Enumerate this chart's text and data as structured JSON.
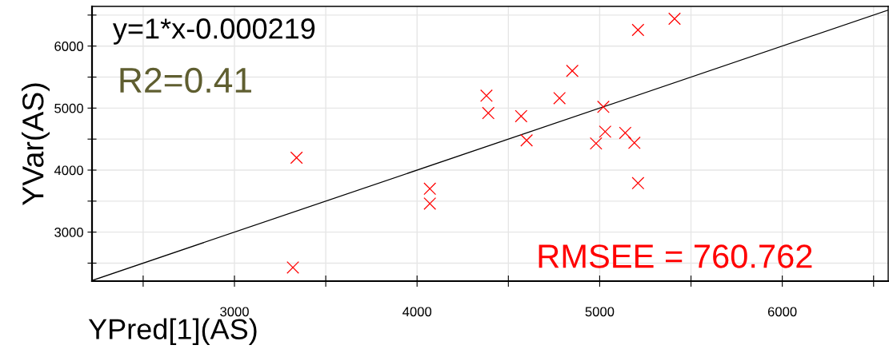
{
  "chart_data": {
    "type": "scatter",
    "xlabel": "YPred[1](AS)",
    "ylabel": "YVar(AS)",
    "annotations": [
      "y=1*x-0.000219",
      "R2=0.41",
      "RMSEE = 760.762"
    ],
    "series": [
      {
        "color": "#ff0000",
        "marker": "cross",
        "x": [
          3320,
          3340,
          4070,
          4070,
          4380,
          4390,
          4570,
          4600,
          4780,
          4850,
          4980,
          5020,
          5030,
          5140,
          5190,
          5210,
          5210,
          5410
        ],
        "values": [
          2430,
          4200,
          3700,
          3460,
          5200,
          4920,
          4870,
          4480,
          5160,
          5600,
          4430,
          5020,
          4620,
          4600,
          4440,
          3790,
          6260,
          6440
        ]
      },
      {
        "type": "line",
        "color": "#000000",
        "marker": "none",
        "x": [
          2220,
          6580
        ],
        "values": [
          2220,
          6580
        ]
      }
    ],
    "xlim": [
      2220,
      6580
    ],
    "ylim": [
      2210,
      6640
    ],
    "xticks": [
      {
        "value": 2500,
        "label": null
      },
      3000,
      {
        "value": 3500,
        "label": null
      },
      4000,
      {
        "value": 4500,
        "label": null
      },
      5000,
      {
        "value": 5500,
        "label": null
      },
      6000,
      {
        "value": 6500,
        "label": null
      }
    ],
    "yticks": [
      {
        "value": 2500,
        "label": null
      },
      3000,
      {
        "value": 3500,
        "label": null
      },
      4000,
      {
        "value": 4500,
        "label": null
      },
      5000,
      {
        "value": 5500,
        "label": null
      },
      6000,
      {
        "value": 6500,
        "label": null
      }
    ],
    "grid": true,
    "legend": false
  }
}
